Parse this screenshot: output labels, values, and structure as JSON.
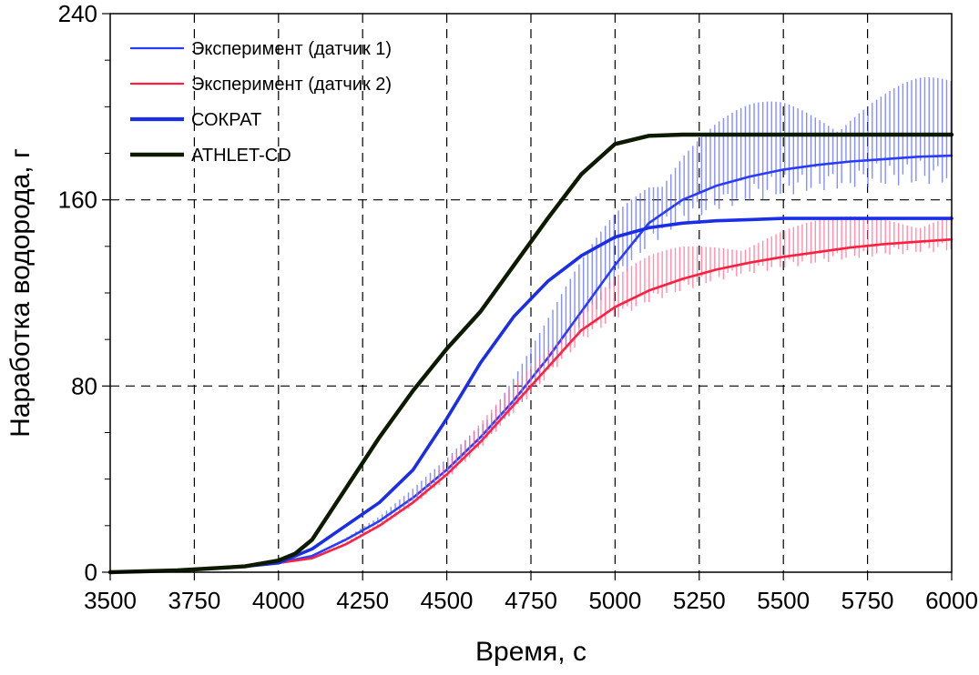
{
  "chart_data": {
    "type": "line",
    "title": "",
    "xlabel": "Время, с",
    "ylabel": "Наработка водорода, г",
    "xlim": [
      3500,
      6000
    ],
    "ylim": [
      0,
      240
    ],
    "x_ticks": [
      3500,
      3750,
      4000,
      4250,
      4500,
      4750,
      5000,
      5250,
      5500,
      5750,
      6000
    ],
    "y_ticks": [
      0,
      80,
      160,
      240
    ],
    "x_tick_labels": [
      "3500",
      "3750",
      "4000",
      "4250",
      "4500",
      "4750",
      "5000",
      "5250",
      "5500",
      "5750",
      "6000"
    ],
    "y_tick_labels": [
      "0",
      "80",
      "160",
      "240"
    ],
    "grid": true,
    "legend_position": "top-left",
    "legend": [
      {
        "label": "Эксперимент (датчик 1)",
        "color": "#2a3cff",
        "style": "thin"
      },
      {
        "label": "Эксперимент (датчик 2)",
        "color": "#ff2040",
        "style": "thin"
      },
      {
        "label": "СОКРАТ",
        "color": "#1a2ee8",
        "style": "thick"
      },
      {
        "label": "ATHLET-CD",
        "color": "#0c1a00",
        "style": "thick"
      }
    ],
    "series": [
      {
        "name": "Эксперимент (датчик 1)",
        "color": "#2a3cff",
        "x": [
          3500,
          3700,
          3900,
          4000,
          4100,
          4200,
          4300,
          4400,
          4500,
          4600,
          4700,
          4800,
          4900,
          5000,
          5100,
          5200,
          5300,
          5400,
          5500,
          5600,
          5700,
          5800,
          5900,
          6000
        ],
        "y": [
          0,
          0.8,
          2.5,
          4,
          7,
          14,
          22,
          32,
          44,
          58,
          74,
          92,
          112,
          132,
          150,
          160,
          166,
          170,
          173,
          175,
          176.5,
          177.5,
          178.5,
          179
        ],
        "spike_amplitude": [
          0,
          0,
          0,
          0,
          0.5,
          1,
          2,
          4,
          6,
          10,
          14,
          18,
          22,
          26,
          28,
          30,
          30,
          31,
          32,
          32,
          33,
          33,
          34,
          34
        ]
      },
      {
        "name": "Эксперимент (датчик 2)",
        "color": "#ff2040",
        "x": [
          3500,
          3700,
          3900,
          4000,
          4100,
          4200,
          4300,
          4400,
          4500,
          4600,
          4700,
          4800,
          4900,
          5000,
          5100,
          5200,
          5300,
          5400,
          5500,
          5600,
          5700,
          5800,
          5900,
          6000
        ],
        "y": [
          0,
          0.8,
          2.5,
          4,
          6,
          12,
          20,
          30,
          42,
          56,
          72,
          88,
          104,
          114,
          121,
          126,
          130,
          133,
          135.5,
          137.5,
          139.5,
          141,
          142,
          143
        ],
        "spike_amplitude": [
          0,
          0,
          0,
          0,
          0.5,
          1,
          2,
          4,
          6,
          8,
          10,
          12,
          14,
          15,
          15,
          15,
          14,
          14,
          14,
          14,
          14,
          14,
          14,
          14
        ]
      },
      {
        "name": "СОКРАТ",
        "color": "#1a2ee8",
        "x": [
          3500,
          3700,
          3900,
          4000,
          4100,
          4200,
          4300,
          4400,
          4500,
          4600,
          4700,
          4800,
          4900,
          5000,
          5100,
          5200,
          5300,
          5400,
          5500,
          5600,
          5700,
          5800,
          5900,
          6000
        ],
        "y": [
          0,
          0.8,
          2.5,
          4,
          10,
          20,
          30,
          44,
          66,
          90,
          110,
          125,
          136,
          144,
          148,
          150,
          151,
          151.5,
          152,
          152,
          152,
          152,
          152,
          152
        ]
      },
      {
        "name": "ATHLET-CD",
        "color": "#0c1a00",
        "x": [
          3500,
          3700,
          3900,
          4000,
          4050,
          4100,
          4200,
          4300,
          4400,
          4500,
          4600,
          4700,
          4800,
          4900,
          5000,
          5100,
          5200,
          5300,
          5400,
          5500,
          5600,
          5700,
          5800,
          5900,
          6000
        ],
        "y": [
          0,
          0.8,
          2.5,
          5,
          8,
          14,
          36,
          58,
          78,
          96,
          112,
          132,
          152,
          171,
          184,
          187.5,
          188,
          188,
          188,
          188,
          188,
          188,
          188,
          188,
          188
        ]
      }
    ]
  }
}
